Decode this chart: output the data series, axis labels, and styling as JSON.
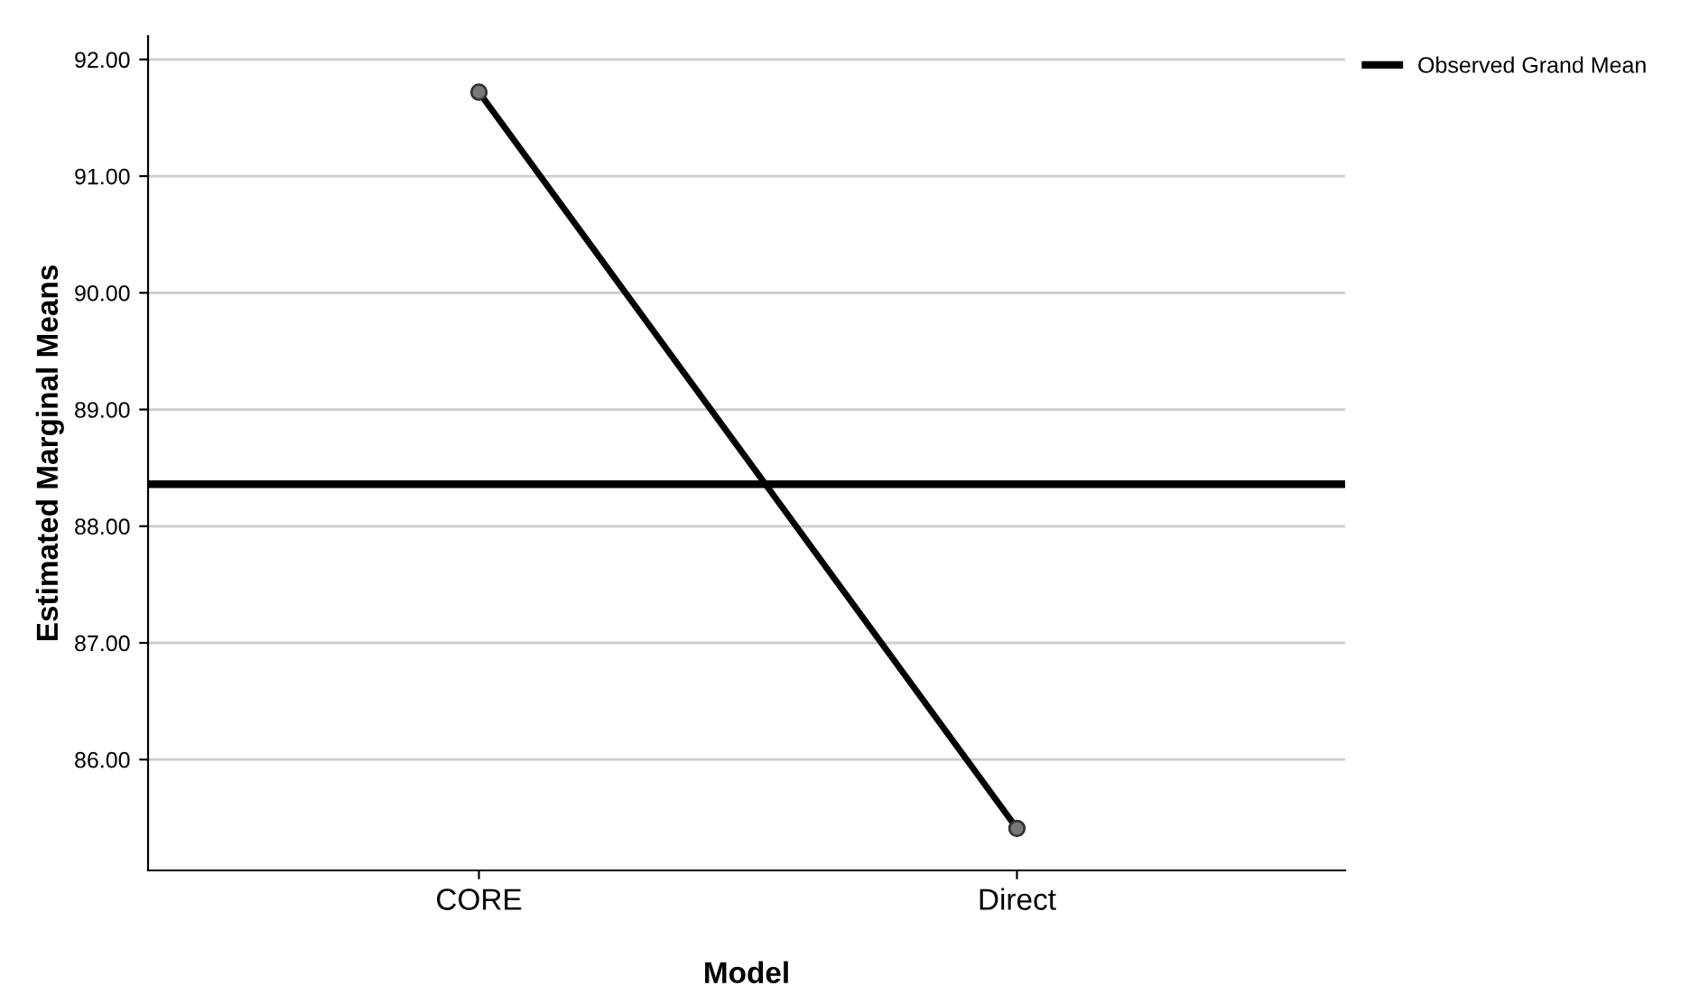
{
  "chart_data": {
    "type": "line",
    "xlabel": "Model",
    "ylabel": "Estimated Marginal Means",
    "categories": [
      "CORE",
      "Direct"
    ],
    "series": [
      {
        "color": "#000000",
        "values": [
          91.72,
          85.41
        ]
      }
    ],
    "marker": "circle",
    "line_style": "solid",
    "ylim": [
      85.05,
      92.2
    ],
    "yticks": [
      {
        "value": 86,
        "label": "86.00"
      },
      {
        "value": 87,
        "label": "87.00"
      },
      {
        "value": 88,
        "label": "88.00"
      },
      {
        "value": 89,
        "label": "89.00"
      },
      {
        "value": 90,
        "label": "90.00"
      },
      {
        "value": 91,
        "label": "91.00"
      },
      {
        "value": 92,
        "label": "92.00"
      }
    ],
    "ref_lines": [
      {
        "axis": "y",
        "value": 88.36,
        "label": "Observed Grand Mean",
        "color": "#000000",
        "line_style": "solid"
      }
    ],
    "grid": "y",
    "legend": "top right"
  }
}
